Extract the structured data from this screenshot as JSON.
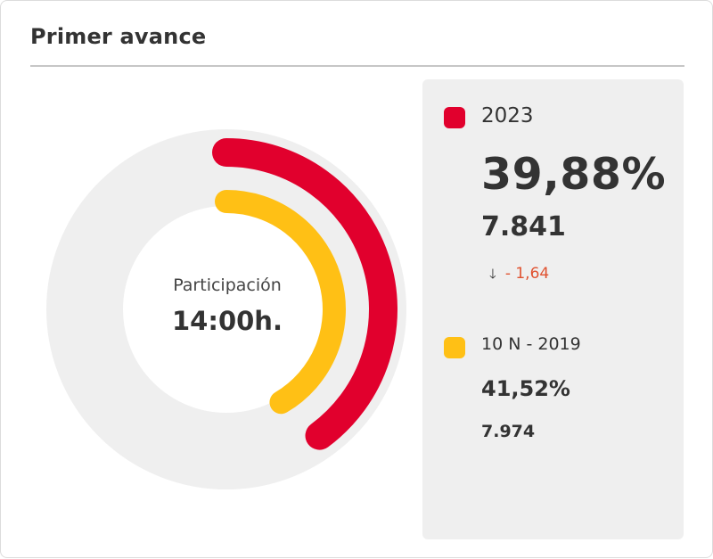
{
  "card": {
    "title": "Primer avance"
  },
  "center": {
    "label": "Participación",
    "value": "14:00h."
  },
  "colors": {
    "track": "#efefef",
    "series_2023": "#e1002d",
    "series_2019": "#ffc015"
  },
  "legend": {
    "current": {
      "name": "2023",
      "percent": "39,88%",
      "count": "7.841",
      "change_icon": "arrow-down-icon",
      "change_arrow": "🡓",
      "change": "- 1,64"
    },
    "previous": {
      "name": "10 N - 2019",
      "percent": "41,52%",
      "count": "7.974"
    }
  },
  "chart_data": {
    "type": "radial-bar",
    "title": "Primer avance",
    "center_text": [
      "Participación",
      "14:00h."
    ],
    "max": 100,
    "series": [
      {
        "name": "2023",
        "value": 39.88,
        "color": "#e1002d"
      },
      {
        "name": "10 N - 2019",
        "value": 41.52,
        "color": "#ffc015"
      }
    ]
  }
}
